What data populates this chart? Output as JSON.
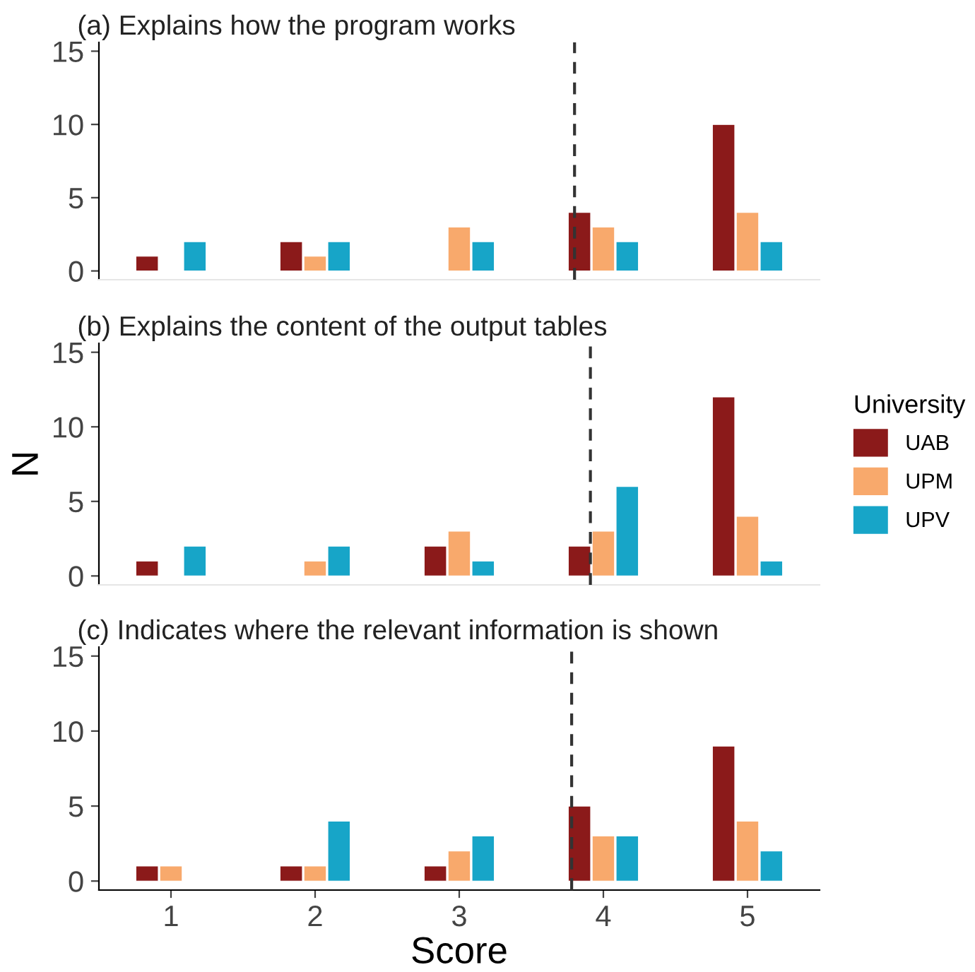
{
  "chart_data": [
    {
      "type": "bar",
      "title": "(a) Explains how the program works",
      "x": [
        1,
        2,
        3,
        4,
        5
      ],
      "xlim": [
        0.5,
        5.5
      ],
      "xticks": [
        1,
        2,
        3,
        4,
        5
      ],
      "ylim": [
        -0.6,
        15.6
      ],
      "yticks": [
        0,
        5,
        10,
        15
      ],
      "tick_labels": "y",
      "grid": false,
      "legend": false,
      "series": [
        {
          "color": "#8b1a1a",
          "values": [
            1,
            2,
            null,
            4,
            10
          ]
        },
        {
          "color": "#f8a96c",
          "values": [
            null,
            1,
            3,
            3,
            4
          ]
        },
        {
          "color": "#17a5c8",
          "values": [
            2,
            2,
            2,
            2,
            2
          ]
        }
      ],
      "ref_lines": [
        {
          "axis": "x",
          "value": 3.8,
          "color": "#333333",
          "line_style": "dashed"
        }
      ]
    },
    {
      "type": "bar",
      "title": "(b) Explains the content of the output tables",
      "ylabel": "N",
      "legend_title": "University",
      "x": [
        1,
        2,
        3,
        4,
        5
      ],
      "xlim": [
        0.5,
        5.5
      ],
      "xticks": [
        1,
        2,
        3,
        4,
        5
      ],
      "ylim": [
        -0.6,
        15.6
      ],
      "yticks": [
        0,
        5,
        10,
        15
      ],
      "tick_labels": "y",
      "grid": false,
      "legend": "right",
      "series": [
        {
          "name": "UAB",
          "color": "#8b1a1a",
          "values": [
            1,
            null,
            2,
            2,
            12
          ]
        },
        {
          "name": "UPM",
          "color": "#f8a96c",
          "values": [
            null,
            1,
            3,
            3,
            4
          ]
        },
        {
          "name": "UPV",
          "color": "#17a5c8",
          "values": [
            2,
            2,
            1,
            6,
            1
          ]
        }
      ],
      "ref_lines": [
        {
          "axis": "x",
          "value": 3.91,
          "color": "#333333",
          "line_style": "dashed"
        }
      ]
    },
    {
      "type": "bar",
      "title": "(c) Indicates where the relevant information is shown",
      "xlabel": "Score",
      "x": [
        1,
        2,
        3,
        4,
        5
      ],
      "xlim": [
        0.5,
        5.5
      ],
      "xticks": [
        1,
        2,
        3,
        4,
        5
      ],
      "ylim": [
        -0.6,
        15.6
      ],
      "yticks": [
        0,
        5,
        10,
        15
      ],
      "grid": false,
      "legend": false,
      "series": [
        {
          "color": "#8b1a1a",
          "values": [
            1,
            1,
            1,
            5,
            9
          ]
        },
        {
          "color": "#f8a96c",
          "values": [
            1,
            1,
            2,
            3,
            4
          ]
        },
        {
          "color": "#17a5c8",
          "values": [
            null,
            4,
            3,
            3,
            2
          ]
        }
      ],
      "ref_lines": [
        {
          "axis": "x",
          "value": 3.78,
          "color": "#333333",
          "line_style": "dashed"
        }
      ]
    }
  ]
}
